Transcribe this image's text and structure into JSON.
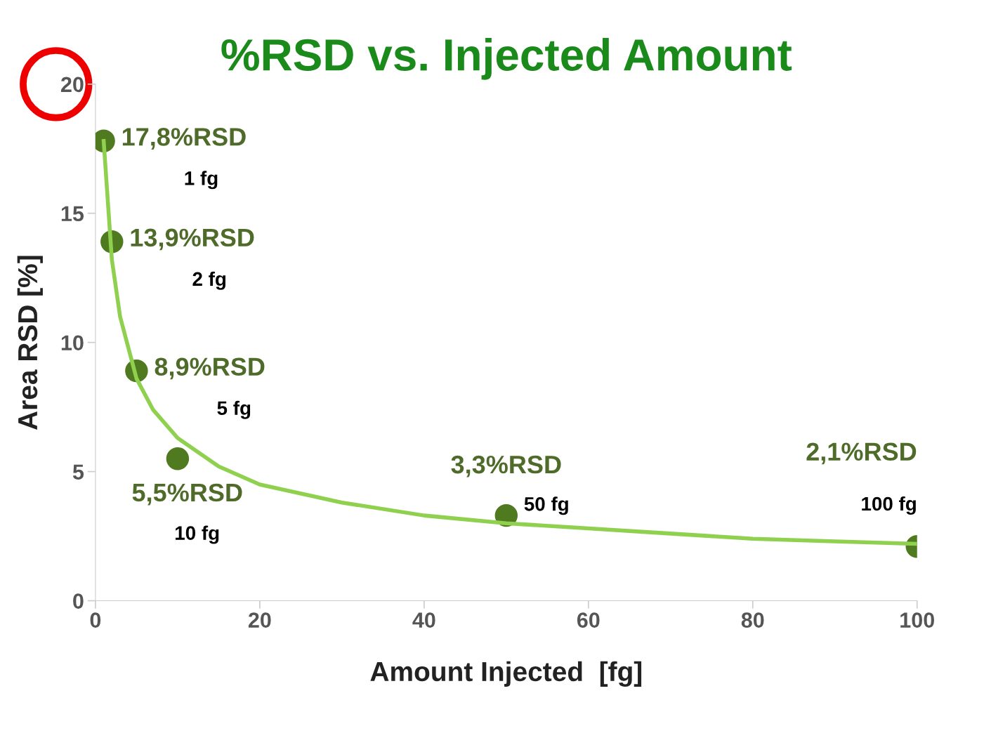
{
  "chart_data": {
    "type": "scatter",
    "title": "%RSD vs. Injected Amount",
    "xlabel": "Amount Injected  [fg]",
    "ylabel": "Area RSD [%]",
    "xlim": [
      0,
      100
    ],
    "xticks": [
      0,
      20,
      40,
      60,
      80,
      100
    ],
    "ylim": [
      0,
      20
    ],
    "yticks": [
      0,
      5,
      10,
      15,
      20
    ],
    "grid": false,
    "legend": false,
    "marker": "circle",
    "series": [
      {
        "type": "line",
        "color": "#8fd14f",
        "line_style": "solid",
        "marker": "none",
        "x": [
          1,
          2,
          3,
          5,
          7,
          10,
          15,
          20,
          30,
          40,
          50,
          60,
          70,
          80,
          90,
          100
        ],
        "values": [
          17.8,
          13.2,
          11.0,
          8.6,
          7.4,
          6.3,
          5.2,
          4.5,
          3.8,
          3.3,
          3.0,
          2.8,
          2.6,
          2.4,
          2.3,
          2.2
        ]
      },
      {
        "color": "#4f7a1f",
        "x": [
          1,
          2,
          5,
          10,
          50,
          100
        ],
        "values": [
          17.8,
          13.9,
          8.9,
          5.5,
          3.3,
          2.1
        ],
        "value_labels": [
          "17,8%RSD",
          "13,9%RSD",
          "8,9%RSD",
          "5,5%RSD",
          "3,3%RSD",
          "2,1%RSD"
        ]
      }
    ],
    "annotations": [
      "1 fg",
      "2 fg",
      "5 fg",
      "10 fg",
      "50 fg",
      "100 fg"
    ]
  }
}
